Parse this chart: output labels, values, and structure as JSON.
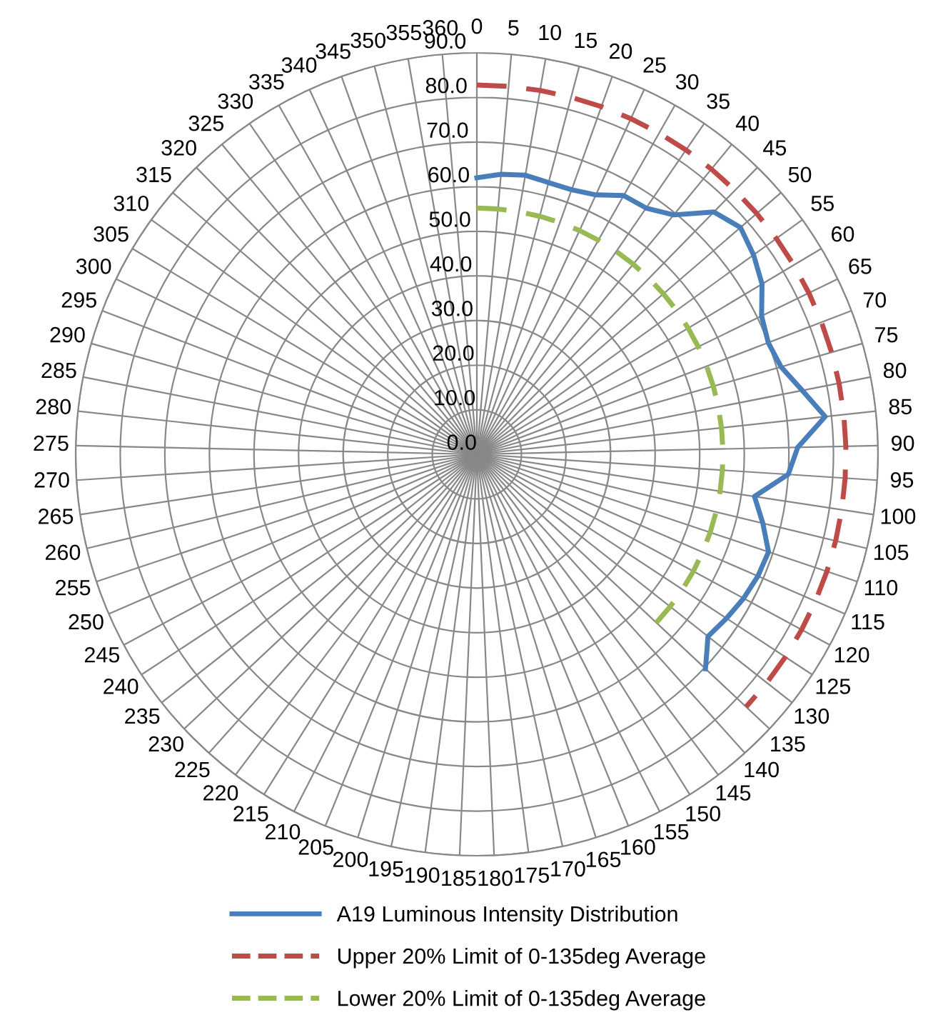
{
  "chart_data": {
    "type": "radar",
    "categories": [
      "0",
      "5",
      "10",
      "15",
      "20",
      "25",
      "30",
      "35",
      "40",
      "45",
      "50",
      "55",
      "60",
      "65",
      "70",
      "75",
      "80",
      "85",
      "90",
      "95",
      "100",
      "105",
      "110",
      "115",
      "120",
      "125",
      "130",
      "135",
      "140",
      "145",
      "150",
      "155",
      "160",
      "165",
      "170",
      "175",
      "180",
      "185",
      "190",
      "195",
      "200",
      "205",
      "210",
      "215",
      "220",
      "225",
      "230",
      "235",
      "240",
      "245",
      "250",
      "255",
      "260",
      "265",
      "270",
      "275",
      "280",
      "285",
      "290",
      "295",
      "300",
      "305",
      "310",
      "315",
      "320",
      "325",
      "330",
      "335",
      "340",
      "345",
      "350",
      "355",
      "360"
    ],
    "series": [
      {
        "name": "A19 Luminous Intensity Distribution",
        "color": "#4a7ebb",
        "line_style": "solid",
        "values": [
          62,
          63,
          63.5,
          63,
          63,
          64,
          66.7,
          67,
          69.5,
          76,
          78,
          76.5,
          74.5,
          71,
          70,
          71,
          74.4,
          78.6,
          72,
          70,
          63,
          66,
          69,
          68.7,
          68,
          67,
          66,
          70.3,
          null,
          null,
          null,
          null,
          null,
          null,
          null,
          null,
          null,
          null,
          null,
          null,
          null,
          null,
          null,
          null,
          null,
          null,
          null,
          null,
          null,
          null,
          null,
          null,
          null,
          null,
          null,
          null,
          null,
          null,
          null,
          null,
          null,
          null,
          null,
          null,
          null,
          null,
          null,
          null,
          null,
          null,
          null,
          null,
          null
        ]
      },
      {
        "name": "Upper 20% Limit of 0-135deg Average",
        "color": "#be4b48",
        "line_style": "dashed",
        "values": [
          82.8,
          82.8,
          82.8,
          82.8,
          82.8,
          82.8,
          82.8,
          82.8,
          82.8,
          82.8,
          82.8,
          82.8,
          82.8,
          82.8,
          82.8,
          82.8,
          82.8,
          82.8,
          82.8,
          82.8,
          82.8,
          82.8,
          82.8,
          82.8,
          82.8,
          82.8,
          82.8,
          82.8,
          null,
          null,
          null,
          null,
          null,
          null,
          null,
          null,
          null,
          null,
          null,
          null,
          null,
          null,
          null,
          null,
          null,
          null,
          null,
          null,
          null,
          null,
          null,
          null,
          null,
          null,
          null,
          null,
          null,
          null,
          null,
          null,
          null,
          null,
          null,
          null,
          null,
          null,
          null,
          null,
          null,
          null,
          null,
          null,
          null
        ]
      },
      {
        "name": "Lower 20% Limit of 0-135deg Average",
        "color": "#98b954",
        "line_style": "dashed",
        "values": [
          55.2,
          55.2,
          55.2,
          55.2,
          55.2,
          55.2,
          55.2,
          55.2,
          55.2,
          55.2,
          55.2,
          55.2,
          55.2,
          55.2,
          55.2,
          55.2,
          55.2,
          55.2,
          55.2,
          55.2,
          55.2,
          55.2,
          55.2,
          55.2,
          55.2,
          55.2,
          55.2,
          55.2,
          null,
          null,
          null,
          null,
          null,
          null,
          null,
          null,
          null,
          null,
          null,
          null,
          null,
          null,
          null,
          null,
          null,
          null,
          null,
          null,
          null,
          null,
          null,
          null,
          null,
          null,
          null,
          null,
          null,
          null,
          null,
          null,
          null,
          null,
          null,
          null,
          null,
          null,
          null,
          null,
          null,
          null,
          null,
          null,
          null
        ]
      }
    ],
    "ylim": [
      0,
      90
    ],
    "yticks": [
      {
        "value": 0,
        "label": "0.0"
      },
      {
        "value": 10,
        "label": "10.0"
      },
      {
        "value": 20,
        "label": "20.0"
      },
      {
        "value": 30,
        "label": "30.0"
      },
      {
        "value": 40,
        "label": "40.0"
      },
      {
        "value": 50,
        "label": "50.0"
      },
      {
        "value": 60,
        "label": "60.0"
      },
      {
        "value": 70,
        "label": "70.0"
      },
      {
        "value": 80,
        "label": "80.0"
      },
      {
        "value": 90,
        "label": "90.0"
      }
    ],
    "grid": true,
    "legend": "bottom"
  }
}
